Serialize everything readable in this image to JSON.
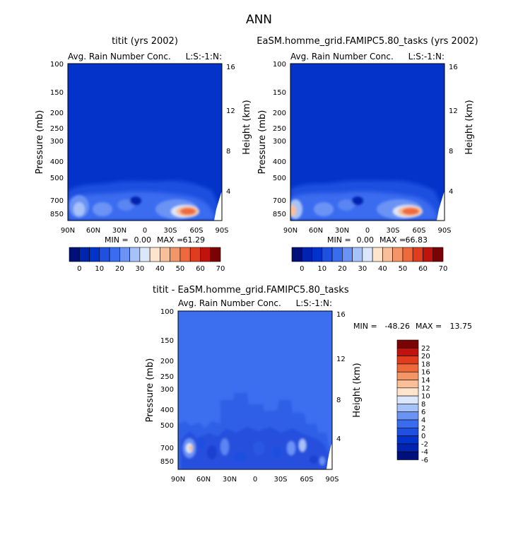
{
  "page_title": "ANN",
  "colors": {
    "palette": [
      "#00107a",
      "#0024b0",
      "#0033cc",
      "#1f50e0",
      "#3a6cf0",
      "#6a93f5",
      "#a7c2f7",
      "#dde7fb",
      "#fde4cc",
      "#f8bf98",
      "#f39566",
      "#ee6a3c",
      "#e03c1e",
      "#c0130e",
      "#7a0404"
    ],
    "background_field": "#0433c9",
    "diff_field": "#3c6ef0"
  },
  "chart_data": [
    {
      "id": "panel1",
      "type": "heatmap",
      "title": "titit (yrs 2002)",
      "subtitle_left": "Avg. Rain Number Conc.",
      "subtitle_right": "L:S:-1:N:",
      "ylabel": "Pressure (mb)",
      "ylabel_right": "Height (km)",
      "x_ticks": [
        "90N",
        "60N",
        "30N",
        "0",
        "30S",
        "60S",
        "90S"
      ],
      "y_ticks": [
        "100",
        "150",
        "200",
        "250",
        "300",
        "400",
        "500",
        "700",
        "850"
      ],
      "y_ticks_right": [
        "16",
        "12",
        "8",
        "4"
      ],
      "min_label": "MIN =",
      "min_value": "0.00",
      "max_label": "MAX =",
      "max_value": "61.29",
      "colorbar_labels": [
        "0",
        "10",
        "20",
        "30",
        "40",
        "50",
        "60",
        "70"
      ]
    },
    {
      "id": "panel2",
      "type": "heatmap",
      "title": "EaSM.homme_grid.FAMIPC5.80_tasks (yrs 2002)",
      "subtitle_left": "Avg. Rain Number Conc.",
      "subtitle_right": "L:S:-1:N:",
      "ylabel": "Pressure (mb)",
      "ylabel_right": "Height (km)",
      "x_ticks": [
        "90N",
        "60N",
        "30N",
        "0",
        "30S",
        "60S",
        "90S"
      ],
      "y_ticks": [
        "100",
        "150",
        "200",
        "250",
        "300",
        "400",
        "500",
        "700",
        "850"
      ],
      "y_ticks_right": [
        "16",
        "12",
        "8",
        "4"
      ],
      "min_label": "MIN =",
      "min_value": "0.00",
      "max_label": "MAX =",
      "max_value": "66.83",
      "colorbar_labels": [
        "0",
        "10",
        "20",
        "30",
        "40",
        "50",
        "60",
        "70"
      ]
    },
    {
      "id": "panel3",
      "type": "heatmap",
      "title": "titit - EaSM.homme_grid.FAMIPC5.80_tasks",
      "subtitle_left": "Avg. Rain Number Conc.",
      "subtitle_right": "L:S:-1:N:",
      "ylabel": "Pressure (mb)",
      "ylabel_right": "Height (km)",
      "x_ticks": [
        "90N",
        "60N",
        "30N",
        "0",
        "30S",
        "60S",
        "90S"
      ],
      "y_ticks": [
        "100",
        "150",
        "200",
        "250",
        "300",
        "400",
        "500",
        "700",
        "850"
      ],
      "y_ticks_right": [
        "16",
        "12",
        "8",
        "4"
      ],
      "min_label": "MIN =",
      "min_value": "-48.26",
      "max_label": "MAX =",
      "max_value": "13.75",
      "colorbar_labels": [
        "22",
        "20",
        "18",
        "16",
        "14",
        "12",
        "10",
        "8",
        "6",
        "4",
        "2",
        "0",
        "-2",
        "-4",
        "-6"
      ]
    }
  ]
}
